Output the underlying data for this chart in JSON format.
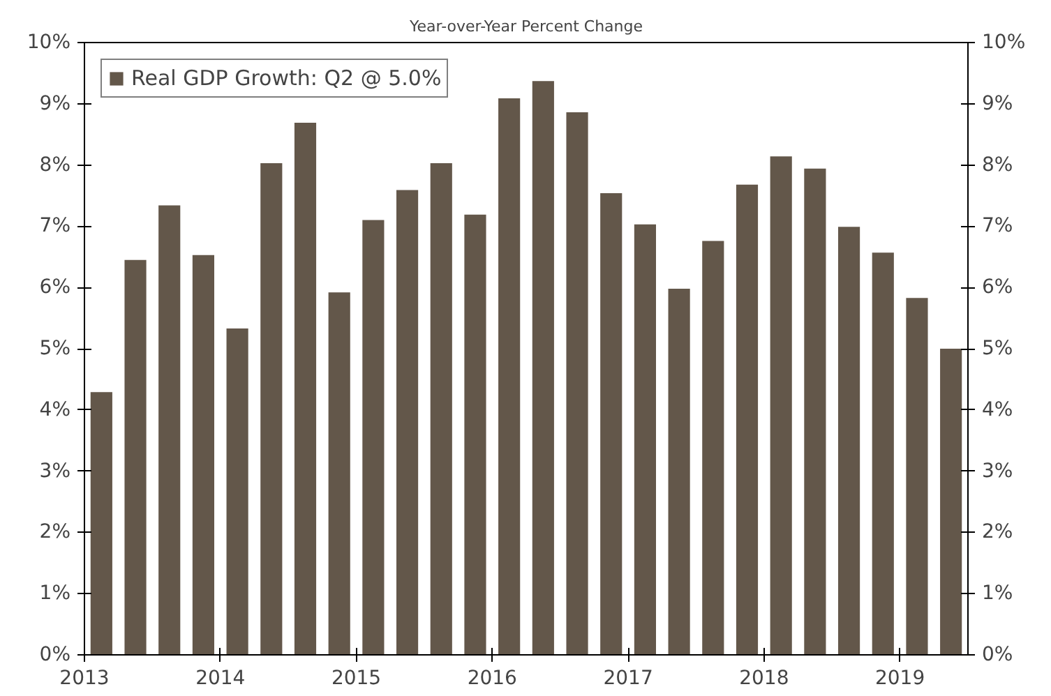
{
  "chart_data": {
    "type": "bar",
    "title": "Year-over-Year Percent Change",
    "x": [
      2013.125,
      2013.375,
      2013.625,
      2013.875,
      2014.125,
      2014.375,
      2014.625,
      2014.875,
      2015.125,
      2015.375,
      2015.625,
      2015.875,
      2016.125,
      2016.375,
      2016.625,
      2016.875,
      2017.125,
      2017.375,
      2017.625,
      2017.875,
      2018.125,
      2018.375,
      2018.625,
      2018.875,
      2019.125,
      2019.375
    ],
    "series": [
      {
        "name": "Real GDP Growth: Q2 @ 5.0%",
        "color": "#63574a",
        "values": [
          4.29,
          6.45,
          7.34,
          6.53,
          5.33,
          8.03,
          8.69,
          5.92,
          7.1,
          7.59,
          8.03,
          7.19,
          9.09,
          9.37,
          8.86,
          7.54,
          7.03,
          5.98,
          6.76,
          7.68,
          8.14,
          7.94,
          6.99,
          6.57,
          5.83,
          5.0
        ]
      }
    ],
    "xlim": [
      2013,
      2019.5
    ],
    "xticks": [
      2013,
      2014,
      2015,
      2016,
      2017,
      2018,
      2019
    ],
    "ylim": [
      0,
      10
    ],
    "yticks": [
      {
        "value": 0,
        "label": "0%"
      },
      {
        "value": 1,
        "label": "1%"
      },
      {
        "value": 2,
        "label": "2%"
      },
      {
        "value": 3,
        "label": "3%"
      },
      {
        "value": 4,
        "label": "4%"
      },
      {
        "value": 5,
        "label": "5%"
      },
      {
        "value": 6,
        "label": "6%"
      },
      {
        "value": 7,
        "label": "7%"
      },
      {
        "value": 8,
        "label": "8%"
      },
      {
        "value": 9,
        "label": "9%"
      },
      {
        "value": 10,
        "label": "10%"
      }
    ],
    "y2lim": [
      0,
      10
    ],
    "y2ticks": [
      {
        "value": 0,
        "label": "0%"
      },
      {
        "value": 1,
        "label": "1%"
      },
      {
        "value": 2,
        "label": "2%"
      },
      {
        "value": 3,
        "label": "3%"
      },
      {
        "value": 4,
        "label": "4%"
      },
      {
        "value": 5,
        "label": "5%"
      },
      {
        "value": 6,
        "label": "6%"
      },
      {
        "value": 7,
        "label": "7%"
      },
      {
        "value": 8,
        "label": "8%"
      },
      {
        "value": 9,
        "label": "9%"
      },
      {
        "value": 10,
        "label": "10%"
      }
    ],
    "grid": false,
    "legend": "top left"
  }
}
